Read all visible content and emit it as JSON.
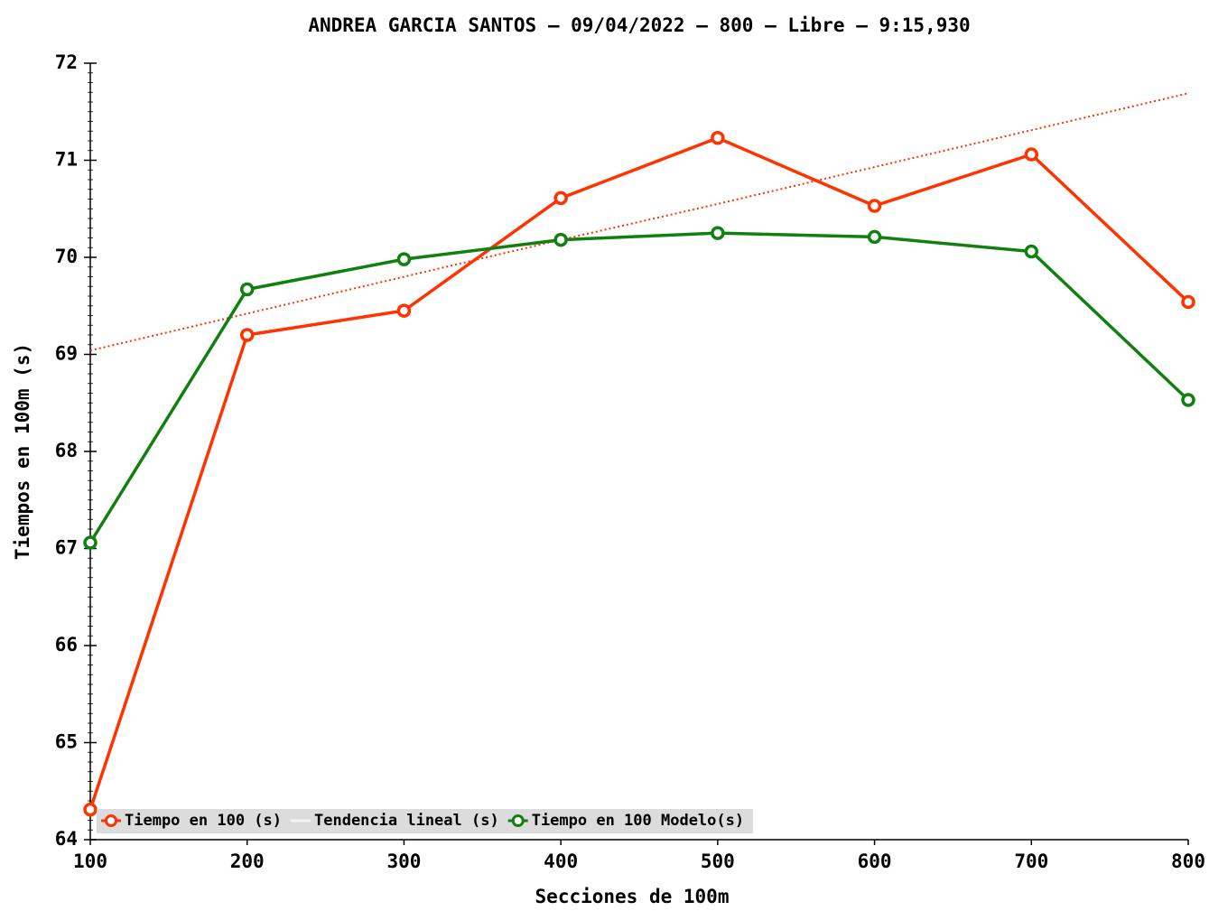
{
  "chart_data": {
    "type": "line",
    "title": "ANDREA GARCIA SANTOS – 09/04/2022 – 800 – Libre – 9:15,930",
    "x_label": "Secciones de 100m",
    "y_label": "Tiempos en 100m (s)",
    "x": [
      100,
      200,
      300,
      400,
      500,
      600,
      700,
      800
    ],
    "series": [
      {
        "name": "Tiempo en 100 (s)",
        "color": "#ff3300",
        "marker": true,
        "values": [
          64.31,
          69.2,
          69.45,
          70.61,
          71.23,
          70.53,
          71.06,
          69.54
        ]
      },
      {
        "name": "Tendencia lineal (s)",
        "color": "#ff3300",
        "marker": false,
        "dotted": true,
        "values": [
          69.04,
          69.42,
          69.8,
          70.18,
          70.55,
          70.93,
          71.31,
          71.69
        ]
      },
      {
        "name": "Tiempo en 100 Modelo(s)",
        "color": "#108010",
        "marker": true,
        "values": [
          67.06,
          69.67,
          69.98,
          70.18,
          70.25,
          70.21,
          70.06,
          68.53
        ]
      }
    ],
    "xlim": [
      100,
      800
    ],
    "xticks": [
      100,
      200,
      300,
      400,
      500,
      600,
      700,
      800
    ],
    "ylim": [
      64,
      72
    ],
    "yticks": [
      64,
      65,
      66,
      67,
      68,
      69,
      70,
      71,
      72
    ],
    "legend": "lower left",
    "grid": false
  }
}
